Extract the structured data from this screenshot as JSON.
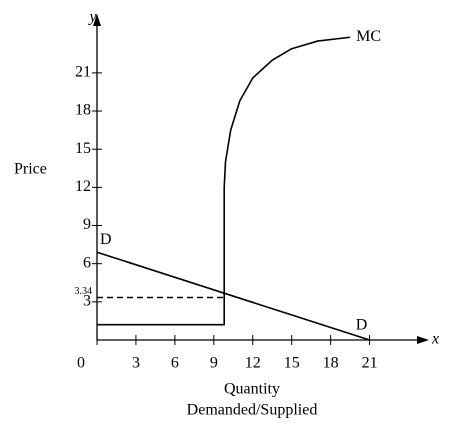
{
  "chart_data": {
    "type": "line",
    "x_label": "x",
    "y_label": "y",
    "y_title": "Price",
    "x_title": [
      "Quantity",
      "Demanded/Supplied"
    ],
    "xlim": [
      0,
      24.5
    ],
    "ylim": [
      0,
      25
    ],
    "xticks": [
      0,
      3,
      6,
      9,
      12,
      15,
      18,
      21
    ],
    "yticks": [
      3,
      6,
      9,
      12,
      15,
      18,
      21
    ],
    "series": [
      {
        "name": "D",
        "color": "#000",
        "x": [
          0,
          21
        ],
        "values": [
          6.9,
          0
        ]
      },
      {
        "name": "MC",
        "color": "#000",
        "x": [
          0,
          9.8,
          9.8,
          9.9,
          10.3,
          11,
          12,
          13.5,
          15,
          17,
          19.5
        ],
        "values": [
          1.2,
          1.2,
          12,
          14,
          16.5,
          18.8,
          20.6,
          22,
          22.9,
          23.5,
          23.8
        ]
      }
    ],
    "reference_line": {
      "y": 3.34,
      "x": [
        0,
        9.9
      ]
    },
    "annotations": [
      "D"
    ]
  }
}
